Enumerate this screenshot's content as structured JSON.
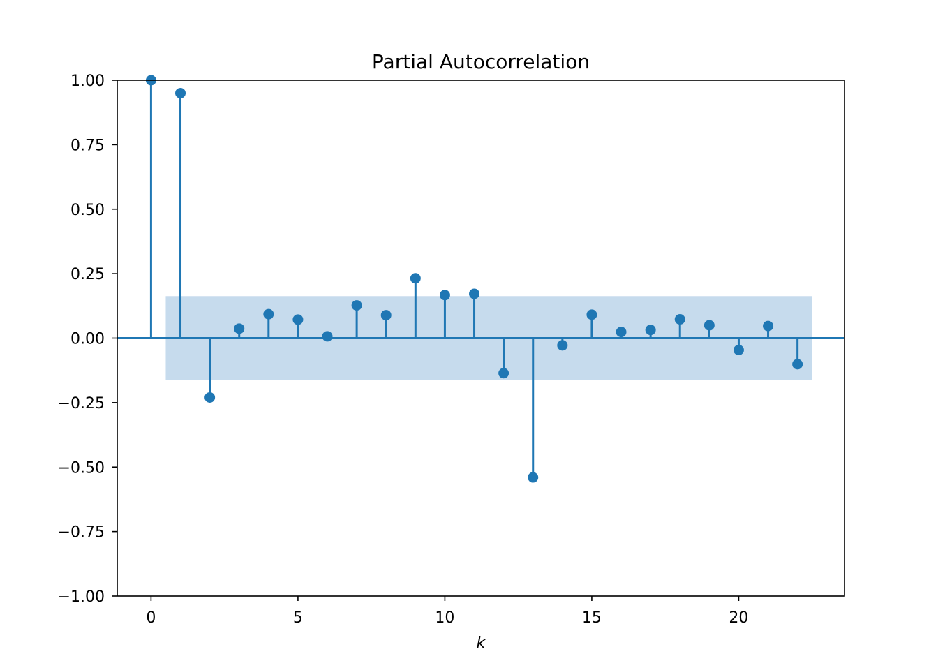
{
  "chart_data": {
    "type": "stem",
    "title": "Partial Autocorrelation",
    "xlabel": "k",
    "ylabel": "",
    "xlim": [
      -1.15,
      23.6
    ],
    "ylim": [
      -1.0,
      1.0
    ],
    "x_ticks": [
      0,
      5,
      10,
      15,
      20
    ],
    "y_ticks": [
      1.0,
      0.75,
      0.5,
      0.25,
      0.0,
      -0.25,
      -0.5,
      -0.75,
      -1.0
    ],
    "x_tick_labels": [
      "0",
      "5",
      "10",
      "15",
      "20"
    ],
    "y_tick_labels": [
      "1.00",
      "0.75",
      "0.50",
      "0.25",
      "0.00",
      "−0.25",
      "−0.50",
      "−0.75",
      "−1.00"
    ],
    "x": [
      0,
      1,
      2,
      3,
      4,
      5,
      6,
      7,
      8,
      9,
      10,
      11,
      12,
      13,
      14,
      15,
      16,
      17,
      18,
      19,
      20,
      21,
      22
    ],
    "values": [
      1.0,
      0.95,
      -0.23,
      0.037,
      0.093,
      0.072,
      0.007,
      0.127,
      0.089,
      0.232,
      0.167,
      0.172,
      -0.136,
      -0.54,
      -0.028,
      0.091,
      0.024,
      0.032,
      0.073,
      0.05,
      -0.046,
      0.047,
      -0.101
    ],
    "confidence_band": {
      "x_range": [
        0.5,
        22.5
      ],
      "lower": -0.163,
      "upper": 0.163
    },
    "grid": false,
    "colors": {
      "stem": "#1f77b4",
      "band": "#c6dbed",
      "axes": "#000000"
    }
  }
}
